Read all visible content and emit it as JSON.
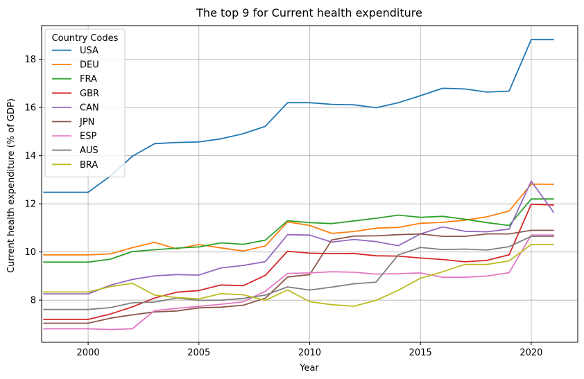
{
  "chart_data": {
    "type": "line",
    "title": "The top 9 for Current health expenditure",
    "xlabel": "Year",
    "ylabel": "Current health expenditure (% of GDP)",
    "xlim": [
      1997.9,
      2022.1
    ],
    "ylim": [
      6.25,
      19.4
    ],
    "x_ticks": [
      2000,
      2005,
      2010,
      2015,
      2020
    ],
    "y_ticks": [
      8,
      10,
      12,
      14,
      16,
      18
    ],
    "grid": true,
    "legend": {
      "title": "Country Codes",
      "placement": "top-left"
    },
    "x": [
      1998,
      1999,
      2000,
      2001,
      2002,
      2003,
      2004,
      2005,
      2006,
      2007,
      2008,
      2009,
      2010,
      2011,
      2012,
      2013,
      2014,
      2015,
      2016,
      2017,
      2018,
      2019,
      2020,
      2021
    ],
    "series": [
      {
        "name": "USA",
        "color": "#1f77b4",
        "values": [
          12.48,
          12.48,
          12.48,
          13.15,
          13.98,
          14.5,
          14.55,
          14.57,
          14.7,
          14.91,
          15.22,
          16.2,
          16.2,
          16.13,
          16.11,
          15.99,
          16.2,
          16.49,
          16.8,
          16.77,
          16.64,
          16.68,
          18.82,
          18.82
        ]
      },
      {
        "name": "DEU",
        "color": "#ff7f0e",
        "values": [
          9.88,
          9.88,
          9.88,
          9.92,
          10.18,
          10.4,
          10.13,
          10.31,
          10.17,
          10.04,
          10.25,
          11.25,
          11.1,
          10.77,
          10.85,
          10.99,
          11.02,
          11.19,
          11.23,
          11.32,
          11.46,
          11.7,
          12.82,
          12.81
        ]
      },
      {
        "name": "FRA",
        "color": "#2ca02c",
        "values": [
          9.58,
          9.58,
          9.58,
          9.7,
          10.02,
          10.09,
          10.16,
          10.21,
          10.38,
          10.32,
          10.49,
          11.3,
          11.22,
          11.18,
          11.29,
          11.4,
          11.53,
          11.44,
          11.48,
          11.36,
          11.22,
          11.1,
          12.2,
          12.2
        ]
      },
      {
        "name": "GBR",
        "color": "#d62728",
        "values": [
          7.2,
          7.2,
          7.2,
          7.42,
          7.72,
          8.09,
          8.33,
          8.4,
          8.63,
          8.6,
          9.03,
          10.03,
          9.95,
          9.93,
          9.94,
          9.84,
          9.83,
          9.75,
          9.69,
          9.59,
          9.65,
          9.88,
          11.98,
          11.95
        ]
      },
      {
        "name": "CAN",
        "color": "#9467bd",
        "values": [
          8.26,
          8.26,
          8.26,
          8.62,
          8.86,
          9.01,
          9.06,
          9.04,
          9.34,
          9.44,
          9.6,
          10.72,
          10.7,
          10.41,
          10.52,
          10.43,
          10.26,
          10.75,
          11.04,
          10.86,
          10.84,
          10.95,
          12.94,
          11.66
        ]
      },
      {
        "name": "JPN",
        "color": "#8c564b",
        "values": [
          7.04,
          7.04,
          7.04,
          7.25,
          7.39,
          7.51,
          7.55,
          7.68,
          7.71,
          7.79,
          8.08,
          8.96,
          9.06,
          10.5,
          10.66,
          10.67,
          10.72,
          10.75,
          10.65,
          10.65,
          10.75,
          10.75,
          10.9,
          10.9
        ]
      },
      {
        "name": "ESP",
        "color": "#e377c2",
        "values": [
          6.81,
          6.81,
          6.81,
          6.78,
          6.81,
          7.57,
          7.66,
          7.74,
          7.83,
          7.93,
          8.37,
          9.11,
          9.13,
          9.18,
          9.16,
          9.08,
          9.1,
          9.13,
          8.95,
          8.95,
          9.0,
          9.14,
          10.7,
          10.7
        ]
      },
      {
        "name": "AUS",
        "color": "#7f7f7f",
        "values": [
          7.61,
          7.61,
          7.61,
          7.69,
          7.89,
          7.92,
          8.09,
          7.99,
          8.0,
          8.07,
          8.21,
          8.55,
          8.42,
          8.54,
          8.68,
          8.75,
          9.88,
          10.19,
          10.1,
          10.12,
          10.08,
          10.22,
          10.65,
          10.65
        ]
      },
      {
        "name": "BRA",
        "color": "#bcbd22",
        "values": [
          8.34,
          8.34,
          8.34,
          8.56,
          8.7,
          8.21,
          8.11,
          8.05,
          8.27,
          8.22,
          7.99,
          8.42,
          7.94,
          7.81,
          7.75,
          7.99,
          8.41,
          8.91,
          9.18,
          9.48,
          9.48,
          9.63,
          10.31,
          10.31
        ]
      }
    ]
  }
}
